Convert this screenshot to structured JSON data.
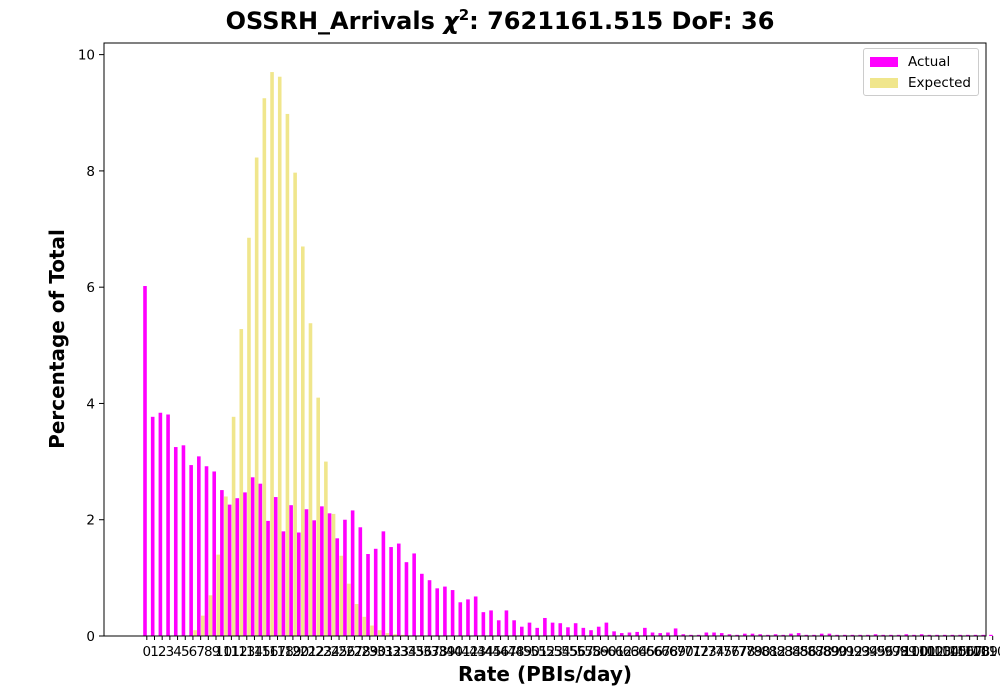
{
  "chart_data": {
    "type": "bar",
    "title": {
      "prefix": "OSSRH_Arrivals ",
      "chi_symbol": "χ",
      "chi_power": "2",
      "suffix": ": 7621161.515 DoF: 36"
    },
    "xlabel": "Rate (PBIs/day)",
    "ylabel": "Percentage of Total",
    "ylim": [
      0,
      10.2
    ],
    "yticks": [
      0,
      2,
      4,
      6,
      8,
      10
    ],
    "grid": false,
    "legend_position": "top-right",
    "categories": [
      "0",
      "1",
      "2",
      "3",
      "4",
      "5",
      "6",
      "7",
      "8",
      "9",
      "10",
      "11",
      "12",
      "13",
      "14",
      "15",
      "16",
      "17",
      "18",
      "19",
      "20",
      "21",
      "22",
      "23",
      "24",
      "25",
      "26",
      "27",
      "28",
      "29",
      "30",
      "31",
      "32",
      "33",
      "34",
      "35",
      "36",
      "37",
      "38",
      "39",
      "40",
      "41",
      "42",
      "43",
      "44",
      "45",
      "46",
      "47",
      "48",
      "49",
      "50",
      "51",
      "52",
      "53",
      "54",
      "55",
      "56",
      "57",
      "58",
      "59",
      "60",
      "61",
      "62",
      "63",
      "64",
      "65",
      "66",
      "67",
      "68",
      "69",
      "70",
      "71",
      "72",
      "73",
      "74",
      "75",
      "76",
      "77",
      "78",
      "79",
      "80",
      "81",
      "82",
      "83",
      "84",
      "85",
      "86",
      "87",
      "88",
      "89",
      "90",
      "91",
      "92",
      "93",
      "94",
      "95",
      "96",
      "97",
      "98",
      "99",
      "100",
      "101",
      "102",
      "103",
      "104",
      "105",
      "106",
      "107",
      "108",
      "109",
      "110"
    ],
    "series": [
      {
        "name": "Actual",
        "color": "#ff00ff",
        "values": [
          6.02,
          3.77,
          3.84,
          3.81,
          3.25,
          3.28,
          2.94,
          3.09,
          2.92,
          2.83,
          2.51,
          2.26,
          2.37,
          2.47,
          2.73,
          2.62,
          1.98,
          2.39,
          1.8,
          2.25,
          1.78,
          2.18,
          1.99,
          2.23,
          2.11,
          1.68,
          2.0,
          2.16,
          1.87,
          1.41,
          1.5,
          1.8,
          1.53,
          1.59,
          1.27,
          1.42,
          1.07,
          0.96,
          0.82,
          0.85,
          0.79,
          0.58,
          0.63,
          0.68,
          0.41,
          0.44,
          0.27,
          0.44,
          0.27,
          0.16,
          0.23,
          0.14,
          0.31,
          0.23,
          0.22,
          0.15,
          0.22,
          0.14,
          0.1,
          0.16,
          0.23,
          0.08,
          0.05,
          0.06,
          0.07,
          0.14,
          0.06,
          0.05,
          0.06,
          0.13,
          0.03,
          0.02,
          0.02,
          0.06,
          0.06,
          0.05,
          0.03,
          0.02,
          0.04,
          0.04,
          0.03,
          0.02,
          0.03,
          0.02,
          0.04,
          0.05,
          0.02,
          0.02,
          0.04,
          0.04,
          0.02,
          0.02,
          0.02,
          0.02,
          0.02,
          0.03,
          0.02,
          0.02,
          0.02,
          0.03,
          0.02,
          0.03,
          0.02,
          0.02,
          0.02,
          0.02,
          0.02,
          0.02,
          0.02,
          0.02,
          0.02
        ]
      },
      {
        "name": "Expected",
        "color": "#f0e68c",
        "values": [
          0,
          0,
          0,
          0,
          0,
          0,
          0.1,
          0.35,
          0.7,
          1.4,
          2.4,
          3.77,
          5.28,
          6.85,
          8.23,
          9.25,
          9.7,
          9.62,
          8.98,
          7.97,
          6.7,
          5.38,
          4.1,
          3.0,
          2.1,
          1.38,
          0.9,
          0.55,
          0.33,
          0.18,
          0.1,
          0.05,
          0.03,
          0.02,
          0,
          0,
          0,
          0,
          0,
          0,
          0,
          0,
          0,
          0,
          0,
          0,
          0,
          0,
          0,
          0,
          0,
          0,
          0,
          0,
          0,
          0,
          0,
          0,
          0,
          0,
          0,
          0,
          0,
          0,
          0,
          0,
          0,
          0,
          0,
          0,
          0,
          0,
          0,
          0,
          0,
          0,
          0,
          0,
          0,
          0,
          0,
          0,
          0,
          0,
          0,
          0,
          0,
          0,
          0,
          0,
          0,
          0,
          0,
          0,
          0,
          0,
          0,
          0,
          0,
          0,
          0,
          0,
          0,
          0,
          0,
          0,
          0,
          0,
          0,
          0,
          0
        ]
      }
    ]
  }
}
